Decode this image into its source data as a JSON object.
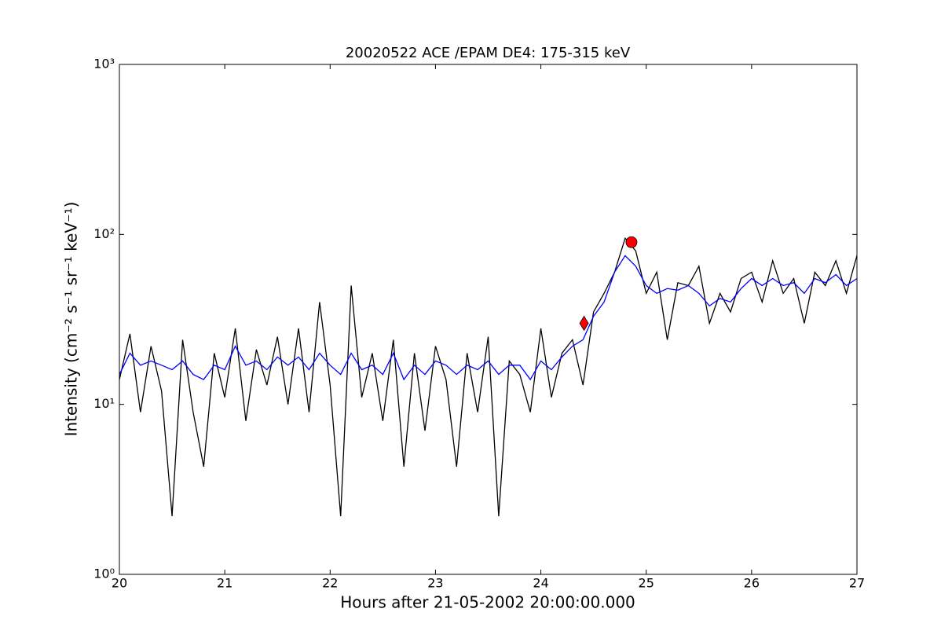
{
  "chart_data": {
    "type": "line",
    "title": "20020522 ACE /EPAM DE4: 175-315 keV",
    "xlabel": "Hours after 21-05-2002 20:00:00.000",
    "ylabel": "Intensity (cm⁻² s⁻¹ sr⁻¹ keV⁻¹)",
    "yscale": "log",
    "xlim": [
      20,
      27
    ],
    "xticks": [
      20,
      21,
      22,
      23,
      24,
      25,
      26,
      27
    ],
    "ylim": [
      1,
      1000
    ],
    "yticks": [
      {
        "value": 1,
        "label": "10⁰"
      },
      {
        "value": 10,
        "label": "10¹"
      },
      {
        "value": 100,
        "label": "10²"
      },
      {
        "value": 1000,
        "label": "10³"
      }
    ],
    "x": [
      20.0,
      20.1,
      20.2,
      20.3,
      20.4,
      20.5,
      20.6,
      20.7,
      20.8,
      20.9,
      21.0,
      21.1,
      21.2,
      21.3,
      21.4,
      21.5,
      21.6,
      21.7,
      21.8,
      21.9,
      22.0,
      22.1,
      22.2,
      22.3,
      22.4,
      22.5,
      22.6,
      22.7,
      22.8,
      22.9,
      23.0,
      23.1,
      23.2,
      23.3,
      23.4,
      23.5,
      23.6,
      23.7,
      23.8,
      23.9,
      24.0,
      24.1,
      24.2,
      24.3,
      24.4,
      24.5,
      24.6,
      24.7,
      24.8,
      24.9,
      25.0,
      25.1,
      25.2,
      25.3,
      25.4,
      25.5,
      25.6,
      25.7,
      25.8,
      25.9,
      26.0,
      26.1,
      26.2,
      26.3,
      26.4,
      26.5,
      26.6,
      26.7,
      26.8,
      26.9,
      27.0
    ],
    "series": [
      {
        "color": "#000000",
        "values": [
          14,
          26,
          9,
          22,
          12,
          2.2,
          24,
          9,
          4.3,
          20,
          11,
          28,
          8,
          21,
          13,
          25,
          10,
          28,
          9,
          40,
          13,
          2.2,
          50,
          11,
          20,
          8,
          24,
          4.3,
          20,
          7,
          22,
          14,
          4.3,
          20,
          9,
          25,
          2.2,
          18,
          15,
          9,
          28,
          11,
          20,
          24,
          13,
          35,
          45,
          60,
          95,
          80,
          45,
          60,
          24,
          52,
          50,
          65,
          30,
          45,
          35,
          55,
          60,
          40,
          70,
          45,
          55,
          30,
          60,
          50,
          70,
          45,
          75
        ]
      },
      {
        "color": "#0000ff",
        "values": [
          15,
          20,
          17,
          18,
          17,
          16,
          18,
          15,
          14,
          17,
          16,
          22,
          17,
          18,
          16,
          19,
          17,
          19,
          16,
          20,
          17,
          15,
          20,
          16,
          17,
          15,
          20,
          14,
          17,
          15,
          18,
          17,
          15,
          17,
          16,
          18,
          15,
          17,
          17,
          14,
          18,
          16,
          19,
          22,
          24,
          33,
          40,
          60,
          75,
          65,
          50,
          45,
          48,
          47,
          50,
          45,
          38,
          42,
          40,
          48,
          55,
          50,
          55,
          50,
          52,
          45,
          55,
          52,
          58,
          50,
          55
        ]
      }
    ],
    "points": [
      {
        "x": 24.41,
        "y": 30,
        "marker": "diamond",
        "color": "#ff0000"
      },
      {
        "x": 24.86,
        "y": 90,
        "marker": "circle",
        "color": "#ff0000"
      }
    ]
  }
}
